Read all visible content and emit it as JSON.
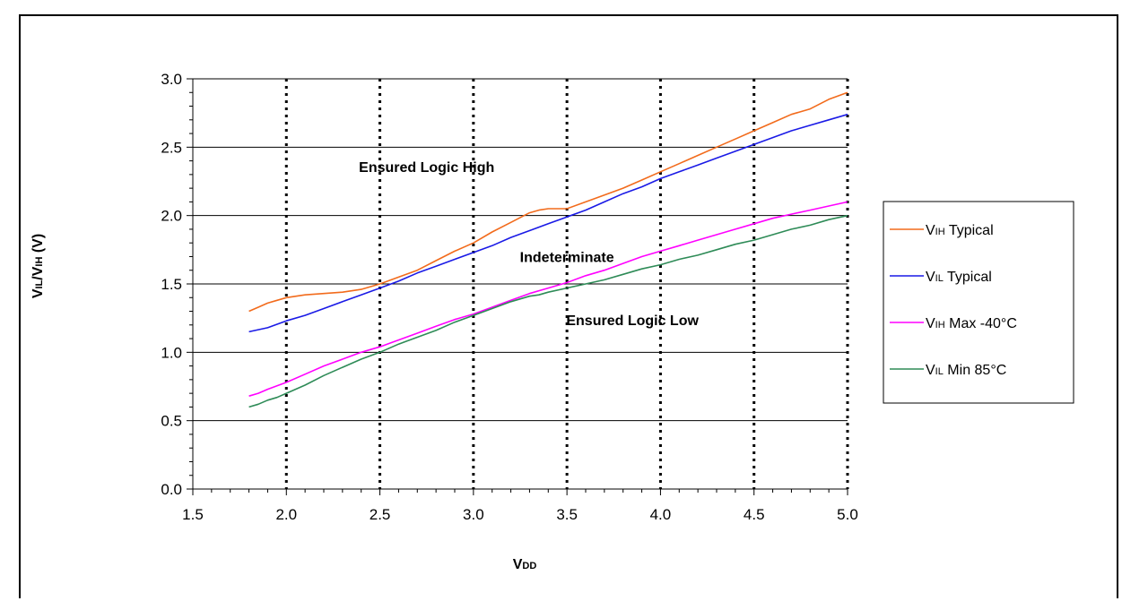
{
  "chart_data": {
    "type": "line",
    "xlabel": {
      "main": "V",
      "sub": "DD"
    },
    "ylabel": {
      "parts": [
        {
          "main": "V",
          "sub": "IL"
        },
        {
          "main": "/V",
          "sub": "IH"
        },
        {
          "main": " (V)",
          "sub": ""
        }
      ]
    },
    "xlim": [
      1.5,
      5.0
    ],
    "ylim": [
      0.0,
      3.0
    ],
    "x_ticks": [
      "1.5",
      "2.0",
      "2.5",
      "3.0",
      "3.5",
      "4.0",
      "4.5",
      "5.0"
    ],
    "y_ticks": [
      "0.0",
      "0.5",
      "1.0",
      "1.5",
      "2.0",
      "2.5",
      "3.0"
    ],
    "grid": {
      "horizontal": "solid",
      "vertical": "dotted"
    },
    "legend_position": "right",
    "annotations": [
      "Ensured Logic High",
      "Indeterminate",
      "Ensured Logic Low"
    ],
    "series": [
      {
        "name": "VIH Typical",
        "name_main": "V",
        "name_sub": "IH",
        "name_rest": " Typical",
        "color": "#f26b1c",
        "x": [
          1.8,
          1.85,
          1.9,
          1.95,
          2.0,
          2.1,
          2.2,
          2.3,
          2.4,
          2.5,
          2.6,
          2.7,
          2.8,
          2.9,
          3.0,
          3.1,
          3.2,
          3.3,
          3.35,
          3.4,
          3.45,
          3.5,
          3.6,
          3.7,
          3.8,
          3.9,
          4.0,
          4.1,
          4.2,
          4.3,
          4.4,
          4.5,
          4.6,
          4.7,
          4.8,
          4.9,
          5.0
        ],
        "y": [
          1.3,
          1.33,
          1.36,
          1.38,
          1.4,
          1.42,
          1.43,
          1.44,
          1.46,
          1.5,
          1.55,
          1.6,
          1.67,
          1.74,
          1.8,
          1.88,
          1.95,
          2.02,
          2.04,
          2.05,
          2.05,
          2.05,
          2.1,
          2.15,
          2.2,
          2.26,
          2.32,
          2.38,
          2.44,
          2.5,
          2.56,
          2.62,
          2.68,
          2.74,
          2.78,
          2.85,
          2.9
        ]
      },
      {
        "name": "VIL Typical",
        "name_main": "V",
        "name_sub": "IL",
        "name_rest": " Typical",
        "color": "#1a1ae6",
        "x": [
          1.8,
          1.9,
          2.0,
          2.1,
          2.2,
          2.3,
          2.4,
          2.5,
          2.6,
          2.7,
          2.8,
          2.9,
          3.0,
          3.1,
          3.2,
          3.3,
          3.4,
          3.5,
          3.6,
          3.7,
          3.8,
          3.9,
          4.0,
          4.1,
          4.2,
          4.3,
          4.4,
          4.5,
          4.6,
          4.7,
          4.8,
          4.9,
          5.0
        ],
        "y": [
          1.15,
          1.18,
          1.23,
          1.27,
          1.32,
          1.37,
          1.42,
          1.47,
          1.52,
          1.58,
          1.63,
          1.68,
          1.73,
          1.78,
          1.84,
          1.89,
          1.94,
          1.99,
          2.04,
          2.1,
          2.16,
          2.21,
          2.27,
          2.32,
          2.37,
          2.42,
          2.47,
          2.52,
          2.57,
          2.62,
          2.66,
          2.7,
          2.74
        ]
      },
      {
        "name": "VIH Max -40°C",
        "name_main": "V",
        "name_sub": "IH",
        "name_rest": " Max -40°C",
        "color": "#ff00ff",
        "x": [
          1.8,
          1.85,
          1.9,
          2.0,
          2.1,
          2.2,
          2.3,
          2.4,
          2.5,
          2.6,
          2.7,
          2.8,
          2.9,
          3.0,
          3.1,
          3.2,
          3.3,
          3.4,
          3.5,
          3.6,
          3.7,
          3.8,
          3.9,
          4.0,
          4.1,
          4.2,
          4.3,
          4.4,
          4.5,
          4.6,
          4.7,
          4.8,
          4.9,
          5.0
        ],
        "y": [
          0.68,
          0.7,
          0.73,
          0.78,
          0.84,
          0.9,
          0.95,
          1.0,
          1.04,
          1.09,
          1.14,
          1.19,
          1.24,
          1.28,
          1.33,
          1.38,
          1.43,
          1.47,
          1.51,
          1.56,
          1.6,
          1.65,
          1.7,
          1.74,
          1.78,
          1.82,
          1.86,
          1.9,
          1.94,
          1.98,
          2.01,
          2.04,
          2.07,
          2.1
        ]
      },
      {
        "name": "VIL Min 85°C",
        "name_main": "V",
        "name_sub": "IL",
        "name_rest": " Min 85°C",
        "color": "#2e8b57",
        "x": [
          1.8,
          1.85,
          1.9,
          1.95,
          2.0,
          2.1,
          2.2,
          2.3,
          2.4,
          2.5,
          2.6,
          2.7,
          2.8,
          2.9,
          3.0,
          3.1,
          3.2,
          3.3,
          3.35,
          3.4,
          3.5,
          3.6,
          3.7,
          3.8,
          3.9,
          4.0,
          4.1,
          4.2,
          4.3,
          4.4,
          4.5,
          4.6,
          4.7,
          4.8,
          4.9,
          5.0
        ],
        "y": [
          0.6,
          0.62,
          0.65,
          0.67,
          0.7,
          0.76,
          0.83,
          0.89,
          0.95,
          1.0,
          1.06,
          1.11,
          1.16,
          1.22,
          1.27,
          1.32,
          1.37,
          1.41,
          1.42,
          1.44,
          1.47,
          1.5,
          1.53,
          1.57,
          1.61,
          1.64,
          1.68,
          1.71,
          1.75,
          1.79,
          1.82,
          1.86,
          1.9,
          1.93,
          1.97,
          2.0
        ]
      }
    ]
  }
}
